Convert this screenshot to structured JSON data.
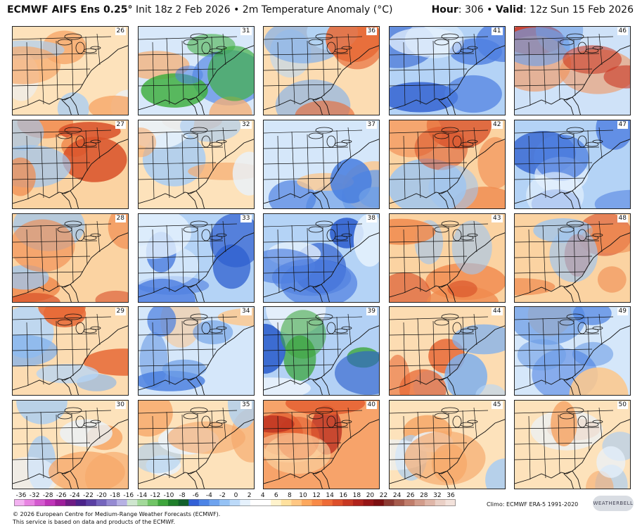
{
  "header": {
    "model": "ECMWF AIFS Ens 0.25°",
    "init": "Init 18z 2 Feb 2026",
    "sep": "•",
    "product": "2m Temperature Anomaly (°C)",
    "hour_label": "Hour",
    "hour_value": ": 306",
    "valid_label": "Valid",
    "valid_value": ": 12z Sun 15 Feb 2026"
  },
  "members": [
    {
      "id": "26",
      "tone": "mixed-warm"
    },
    {
      "id": "31",
      "tone": "very-cold-north"
    },
    {
      "id": "36",
      "tone": "warm-north-cool-south"
    },
    {
      "id": "41",
      "tone": "cold"
    },
    {
      "id": "46",
      "tone": "warm-west"
    },
    {
      "id": "27",
      "tone": "warm"
    },
    {
      "id": "32",
      "tone": "mixed-warm"
    },
    {
      "id": "37",
      "tone": "mixed-cold"
    },
    {
      "id": "42",
      "tone": "warm"
    },
    {
      "id": "47",
      "tone": "cold"
    },
    {
      "id": "28",
      "tone": "warm"
    },
    {
      "id": "33",
      "tone": "cold"
    },
    {
      "id": "38",
      "tone": "cold"
    },
    {
      "id": "43",
      "tone": "warm"
    },
    {
      "id": "48",
      "tone": "warm"
    },
    {
      "id": "29",
      "tone": "warm-north-cool-south"
    },
    {
      "id": "34",
      "tone": "mixed-cold"
    },
    {
      "id": "39",
      "tone": "very-cold-south"
    },
    {
      "id": "44",
      "tone": "warm-north-cool-south"
    },
    {
      "id": "49",
      "tone": "mixed-cold"
    },
    {
      "id": "30",
      "tone": "mixed-warm"
    },
    {
      "id": "35",
      "tone": "mixed-warm"
    },
    {
      "id": "40",
      "tone": "very-warm"
    },
    {
      "id": "45",
      "tone": "mixed-warm"
    },
    {
      "id": "50",
      "tone": "mixed-warm"
    }
  ],
  "colorbar": {
    "ticks": [
      "-36",
      "-32",
      "-28",
      "-26",
      "-24",
      "-22",
      "-20",
      "-18",
      "-16",
      "-14",
      "-12",
      "-10",
      "-8",
      "-6",
      "-4",
      "-2",
      "0",
      "2",
      "4",
      "6",
      "8",
      "10",
      "12",
      "14",
      "16",
      "18",
      "20",
      "22",
      "24",
      "26",
      "28",
      "32",
      "36"
    ],
    "colors": [
      "#f3b2f1",
      "#e884e2",
      "#d459cf",
      "#bf34b8",
      "#9d1e9a",
      "#6e1b84",
      "#4b238a",
      "#5a3fa3",
      "#7565bd",
      "#958ad2",
      "#b6b1e3",
      "#cfe6cf",
      "#a3d99a",
      "#71c466",
      "#3ea53c",
      "#1f7f2a",
      "#12602b",
      "#3360d6",
      "#4c84e6",
      "#6ea3ef",
      "#95c2f5",
      "#bcdaf9",
      "#e6f2fd",
      "#ffffff",
      "#ffffff",
      "#fff3cc",
      "#ffe19e",
      "#ffc783",
      "#fda85d",
      "#f88a47",
      "#ee6b36",
      "#dd4f2a",
      "#c73822",
      "#b0231c",
      "#961516",
      "#7c0f10",
      "#8c3a32",
      "#a65b4c",
      "#c07d6b",
      "#d29c8b",
      "#dfb6a8",
      "#ead0c6",
      "#f3e2db"
    ]
  },
  "credits": {
    "line1": "© 2026 European Centre for Medium-Range Weather Forecasts (ECMWF).",
    "line2": "This service is based on data and products of the ECMWF.",
    "climo": "Climo: ECMWF ERA-5 1991-2020",
    "logo": "WEATHERBELL"
  }
}
